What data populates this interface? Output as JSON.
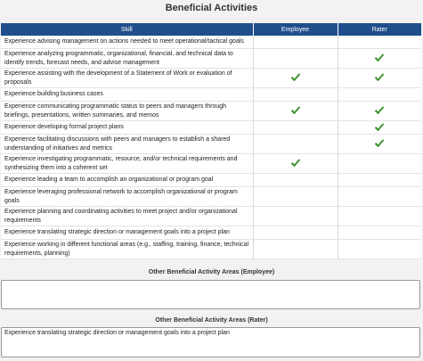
{
  "page": {
    "title": "Beneficial Activities"
  },
  "table": {
    "headers": {
      "skill": "Skill",
      "employee": "Employee",
      "rater": "Rater"
    },
    "rows": [
      {
        "skill": "Experience advising management on actions needed to meet operational/tactical goals",
        "employee": false,
        "rater": false
      },
      {
        "skill": "Experience analyzing programmatic, organizational, financial, and technical data to identify trends, forecast needs, and advise management",
        "employee": false,
        "rater": true
      },
      {
        "skill": "Experience assisting with the development of a Statement of Work or evaluation of proposals",
        "employee": true,
        "rater": true
      },
      {
        "skill": "Experience building business cases",
        "employee": false,
        "rater": false
      },
      {
        "skill": "Experience communicating programmatic status to peers and managers through briefings, presentations, written summaries, and memos",
        "employee": true,
        "rater": true
      },
      {
        "skill": "Experience developing formal project plans",
        "employee": false,
        "rater": true
      },
      {
        "skill": "Experience facilitating discussions with peers and managers to establish a shared understanding of initiatives and metrics",
        "employee": false,
        "rater": true
      },
      {
        "skill": "Experience investigating programmatic, resource, and/or technical requirements and synthesizing them into a coherent set",
        "employee": true,
        "rater": false
      },
      {
        "skill": "Experience leading a team to accomplish an organizational or program goal",
        "employee": false,
        "rater": false
      },
      {
        "skill": "Experience leveraging professional network to accomplish organizational or program goals",
        "employee": false,
        "rater": false
      },
      {
        "skill": "Experience planning and coordinating activities to meet project and/or organizational requirements",
        "employee": false,
        "rater": false
      },
      {
        "skill": "Experience translating strategic direction or management goals into a project plan",
        "employee": false,
        "rater": false
      },
      {
        "skill": "Experience working in different functional areas (e.g., staffing, training, finance, technical requirements, planning)",
        "employee": false,
        "rater": false
      }
    ]
  },
  "other_employee": {
    "title": "Other Beneficial Activity Areas (Employee)",
    "value": ""
  },
  "other_rater": {
    "title": "Other Beneficial Activity Areas (Rater)",
    "value": "Experience translating strategic direction or management goals into a project plan"
  },
  "colors": {
    "header_bg": "#1f4e8c",
    "check_green": "#3a9a2a"
  },
  "icons": {
    "check": "checkmark-icon"
  }
}
